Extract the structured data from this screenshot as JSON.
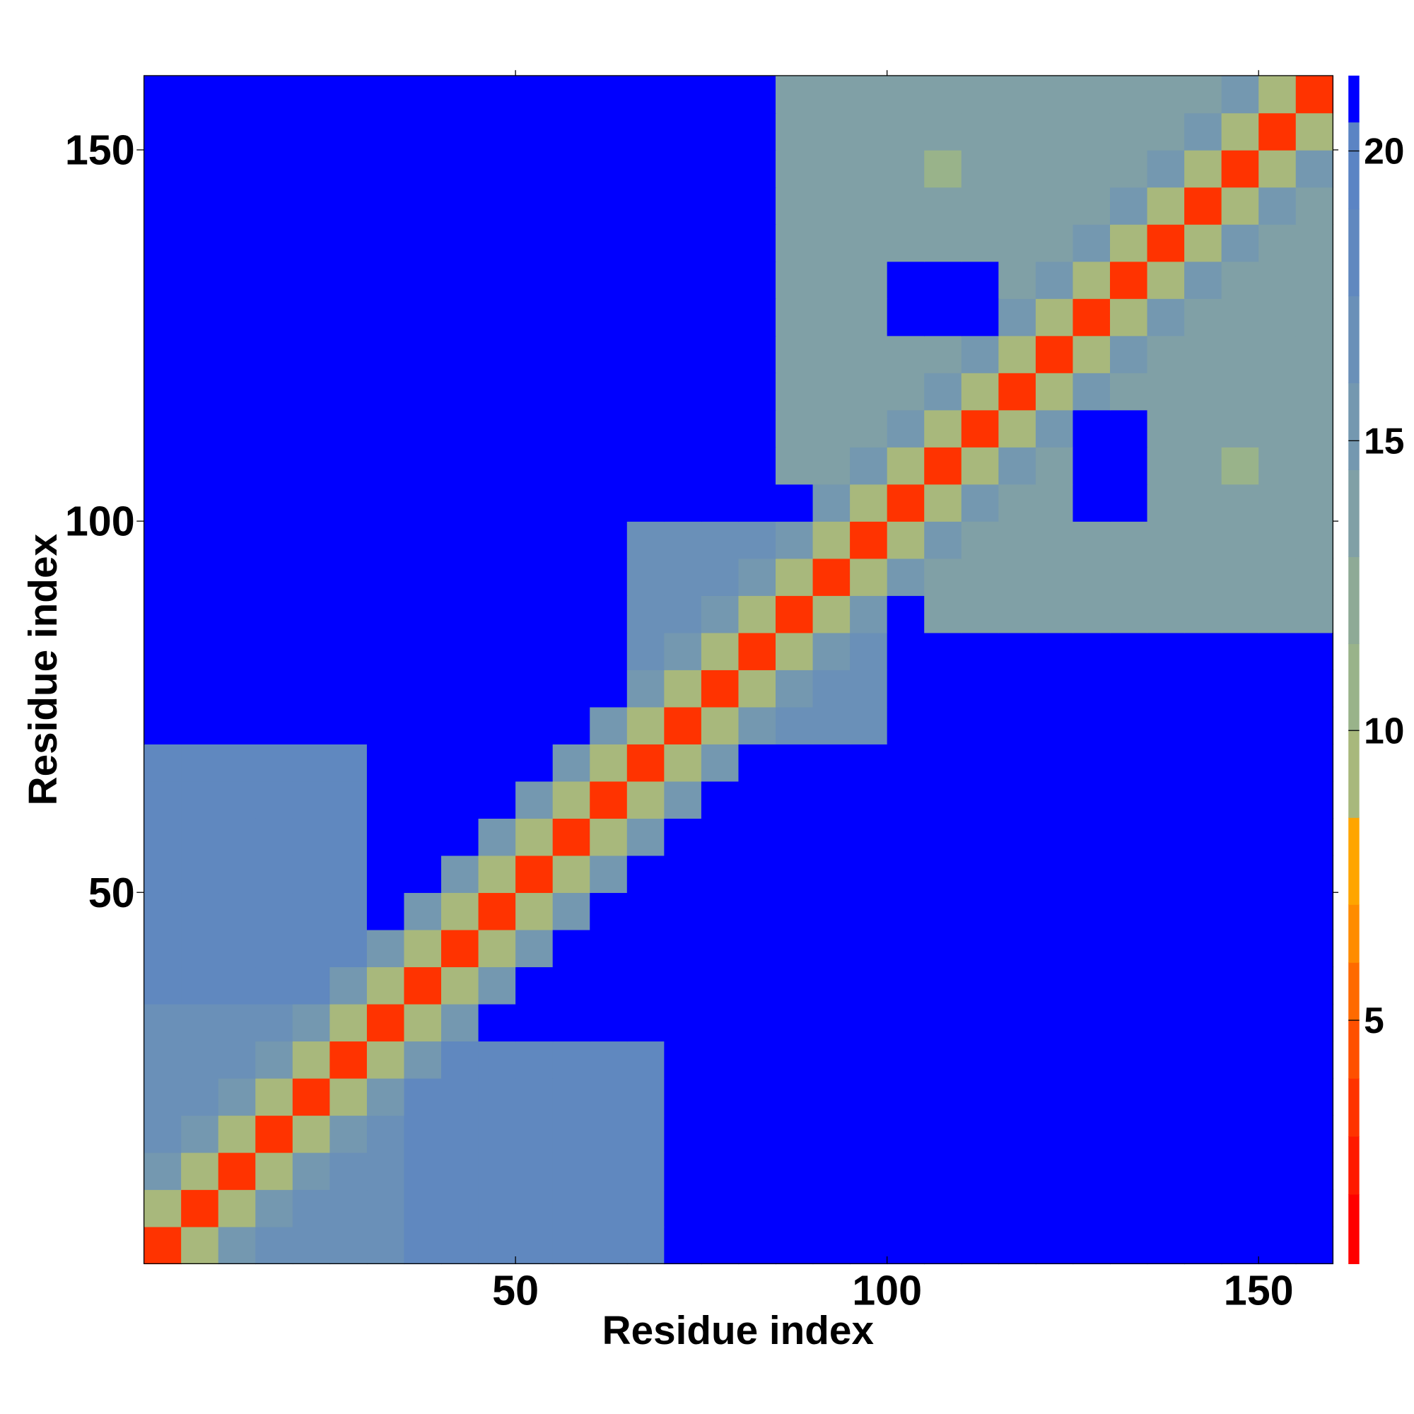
{
  "chart_data": {
    "type": "heatmap",
    "x_label": "Residue index",
    "y_label": "Residue index",
    "x": [
      2.5,
      7.5,
      12.5,
      17.5,
      22.5,
      27.5,
      32.5,
      37.5,
      42.5,
      47.5,
      52.5,
      57.5,
      62.5,
      67.5,
      72.5,
      77.5,
      82.5,
      87.5,
      92.5,
      97.5,
      102.5,
      107.5,
      112.5,
      117.5,
      122.5,
      127.5,
      132.5,
      137.5,
      142.5,
      147.5,
      152.5,
      157.5
    ],
    "y": [
      2.5,
      7.5,
      12.5,
      17.5,
      22.5,
      27.5,
      32.5,
      37.5,
      42.5,
      47.5,
      52.5,
      57.5,
      62.5,
      67.5,
      72.5,
      77.5,
      82.5,
      87.5,
      92.5,
      97.5,
      102.5,
      107.5,
      112.5,
      117.5,
      122.5,
      127.5,
      132.5,
      137.5,
      142.5,
      147.5,
      152.5,
      157.5
    ],
    "xlim": [
      0,
      160
    ],
    "ylim": [
      0,
      160
    ],
    "xticks": [
      50,
      100,
      150
    ],
    "yticks": [
      50,
      100,
      150
    ],
    "values": [
      [
        3,
        9,
        15,
        16,
        16,
        16,
        16,
        18,
        18,
        18,
        18,
        18,
        18,
        18,
        21,
        21,
        21,
        21,
        21,
        21,
        21,
        21,
        21,
        21,
        21,
        21,
        21,
        21,
        21,
        21,
        21,
        21
      ],
      [
        9,
        3,
        9,
        15,
        16,
        16,
        16,
        18,
        18,
        18,
        18,
        18,
        18,
        18,
        21,
        21,
        21,
        21,
        21,
        21,
        21,
        21,
        21,
        21,
        21,
        21,
        21,
        21,
        21,
        21,
        21,
        21
      ],
      [
        15,
        9,
        3,
        9,
        15,
        16,
        16,
        18,
        18,
        18,
        18,
        18,
        18,
        18,
        21,
        21,
        21,
        21,
        21,
        21,
        21,
        21,
        21,
        21,
        21,
        21,
        21,
        21,
        21,
        21,
        21,
        21
      ],
      [
        16,
        15,
        9,
        3,
        9,
        15,
        16,
        18,
        18,
        18,
        18,
        18,
        18,
        18,
        21,
        21,
        21,
        21,
        21,
        21,
        21,
        21,
        21,
        21,
        21,
        21,
        21,
        21,
        21,
        21,
        21,
        21
      ],
      [
        16,
        16,
        15,
        9,
        3,
        9,
        15,
        18,
        18,
        18,
        18,
        18,
        18,
        18,
        21,
        21,
        21,
        21,
        21,
        21,
        21,
        21,
        21,
        21,
        21,
        21,
        21,
        21,
        21,
        21,
        21,
        21
      ],
      [
        16,
        16,
        16,
        15,
        9,
        3,
        9,
        15,
        18,
        18,
        18,
        18,
        18,
        18,
        21,
        21,
        21,
        21,
        21,
        21,
        21,
        21,
        21,
        21,
        21,
        21,
        21,
        21,
        21,
        21,
        21,
        21
      ],
      [
        16,
        16,
        16,
        16,
        15,
        9,
        3,
        9,
        15,
        21,
        21,
        21,
        21,
        21,
        21,
        21,
        21,
        21,
        21,
        21,
        21,
        21,
        21,
        21,
        21,
        21,
        21,
        21,
        21,
        21,
        21,
        21
      ],
      [
        18,
        18,
        18,
        18,
        18,
        15,
        9,
        3,
        9,
        15,
        21,
        21,
        21,
        21,
        21,
        21,
        21,
        21,
        21,
        21,
        21,
        21,
        21,
        21,
        21,
        21,
        21,
        21,
        21,
        21,
        21,
        21
      ],
      [
        18,
        18,
        18,
        18,
        18,
        18,
        15,
        9,
        3,
        9,
        15,
        21,
        21,
        21,
        21,
        21,
        21,
        21,
        21,
        21,
        21,
        21,
        21,
        21,
        21,
        21,
        21,
        21,
        21,
        21,
        21,
        21
      ],
      [
        18,
        18,
        18,
        18,
        18,
        18,
        21,
        15,
        9,
        3,
        9,
        15,
        21,
        21,
        21,
        21,
        21,
        21,
        21,
        21,
        21,
        21,
        21,
        21,
        21,
        21,
        21,
        21,
        21,
        21,
        21,
        21
      ],
      [
        18,
        18,
        18,
        18,
        18,
        18,
        21,
        21,
        15,
        9,
        3,
        9,
        15,
        21,
        21,
        21,
        21,
        21,
        21,
        21,
        21,
        21,
        21,
        21,
        21,
        21,
        21,
        21,
        21,
        21,
        21,
        21
      ],
      [
        18,
        18,
        18,
        18,
        18,
        18,
        21,
        21,
        21,
        15,
        9,
        3,
        9,
        15,
        21,
        21,
        21,
        21,
        21,
        21,
        21,
        21,
        21,
        21,
        21,
        21,
        21,
        21,
        21,
        21,
        21,
        21
      ],
      [
        18,
        18,
        18,
        18,
        18,
        18,
        21,
        21,
        21,
        21,
        15,
        9,
        3,
        9,
        15,
        21,
        21,
        21,
        21,
        21,
        21,
        21,
        21,
        21,
        21,
        21,
        21,
        21,
        21,
        21,
        21,
        21
      ],
      [
        18,
        18,
        18,
        18,
        18,
        18,
        21,
        21,
        21,
        21,
        21,
        15,
        9,
        3,
        9,
        15,
        21,
        21,
        21,
        21,
        21,
        21,
        21,
        21,
        21,
        21,
        21,
        21,
        21,
        21,
        21,
        21
      ],
      [
        21,
        21,
        21,
        21,
        21,
        21,
        21,
        21,
        21,
        21,
        21,
        21,
        15,
        9,
        3,
        9,
        15,
        16,
        16,
        16,
        21,
        21,
        21,
        21,
        21,
        21,
        21,
        21,
        21,
        21,
        21,
        21
      ],
      [
        21,
        21,
        21,
        21,
        21,
        21,
        21,
        21,
        21,
        21,
        21,
        21,
        21,
        15,
        9,
        3,
        9,
        15,
        16,
        16,
        21,
        21,
        21,
        21,
        21,
        21,
        21,
        21,
        21,
        21,
        21,
        21
      ],
      [
        21,
        21,
        21,
        21,
        21,
        21,
        21,
        21,
        21,
        21,
        21,
        21,
        21,
        16,
        15,
        9,
        3,
        9,
        15,
        16,
        21,
        21,
        21,
        21,
        21,
        21,
        21,
        21,
        21,
        21,
        21,
        21
      ],
      [
        21,
        21,
        21,
        21,
        21,
        21,
        21,
        21,
        21,
        21,
        21,
        21,
        21,
        16,
        16,
        15,
        9,
        3,
        9,
        15,
        21,
        14,
        14,
        14,
        14,
        14,
        14,
        14,
        14,
        14,
        14,
        14
      ],
      [
        21,
        21,
        21,
        21,
        21,
        21,
        21,
        21,
        21,
        21,
        21,
        21,
        21,
        16,
        16,
        16,
        15,
        9,
        3,
        9,
        15,
        14,
        14,
        14,
        14,
        14,
        14,
        14,
        14,
        14,
        14,
        14
      ],
      [
        21,
        21,
        21,
        21,
        21,
        21,
        21,
        21,
        21,
        21,
        21,
        21,
        21,
        16,
        16,
        16,
        16,
        15,
        9,
        3,
        9,
        15,
        14,
        14,
        14,
        14,
        14,
        14,
        14,
        14,
        14,
        14
      ],
      [
        21,
        21,
        21,
        21,
        21,
        21,
        21,
        21,
        21,
        21,
        21,
        21,
        21,
        21,
        21,
        21,
        21,
        21,
        15,
        9,
        3,
        9,
        15,
        14,
        14,
        21,
        21,
        14,
        14,
        14,
        14,
        14
      ],
      [
        21,
        21,
        21,
        21,
        21,
        21,
        21,
        21,
        21,
        21,
        21,
        21,
        21,
        21,
        21,
        21,
        21,
        14,
        14,
        15,
        9,
        3,
        9,
        15,
        14,
        21,
        21,
        14,
        14,
        10,
        14,
        14
      ],
      [
        21,
        21,
        21,
        21,
        21,
        21,
        21,
        21,
        21,
        21,
        21,
        21,
        21,
        21,
        21,
        21,
        21,
        14,
        14,
        14,
        15,
        9,
        3,
        9,
        15,
        21,
        21,
        14,
        14,
        14,
        14,
        14
      ],
      [
        21,
        21,
        21,
        21,
        21,
        21,
        21,
        21,
        21,
        21,
        21,
        21,
        21,
        21,
        21,
        21,
        21,
        14,
        14,
        14,
        14,
        15,
        9,
        3,
        9,
        15,
        14,
        14,
        14,
        14,
        14,
        14
      ],
      [
        21,
        21,
        21,
        21,
        21,
        21,
        21,
        21,
        21,
        21,
        21,
        21,
        21,
        21,
        21,
        21,
        21,
        14,
        14,
        14,
        14,
        14,
        15,
        9,
        3,
        9,
        15,
        14,
        14,
        14,
        14,
        14
      ],
      [
        21,
        21,
        21,
        21,
        21,
        21,
        21,
        21,
        21,
        21,
        21,
        21,
        21,
        21,
        21,
        21,
        21,
        14,
        14,
        14,
        21,
        21,
        21,
        15,
        9,
        3,
        9,
        15,
        14,
        14,
        14,
        14
      ],
      [
        21,
        21,
        21,
        21,
        21,
        21,
        21,
        21,
        21,
        21,
        21,
        21,
        21,
        21,
        21,
        21,
        21,
        14,
        14,
        14,
        21,
        21,
        21,
        14,
        15,
        9,
        3,
        9,
        15,
        14,
        14,
        14
      ],
      [
        21,
        21,
        21,
        21,
        21,
        21,
        21,
        21,
        21,
        21,
        21,
        21,
        21,
        21,
        21,
        21,
        21,
        14,
        14,
        14,
        14,
        14,
        14,
        14,
        14,
        15,
        9,
        3,
        9,
        15,
        14,
        14
      ],
      [
        21,
        21,
        21,
        21,
        21,
        21,
        21,
        21,
        21,
        21,
        21,
        21,
        21,
        21,
        21,
        21,
        21,
        14,
        14,
        14,
        14,
        14,
        14,
        14,
        14,
        14,
        15,
        9,
        3,
        9,
        15,
        14
      ],
      [
        21,
        21,
        21,
        21,
        21,
        21,
        21,
        21,
        21,
        21,
        21,
        21,
        21,
        21,
        21,
        21,
        21,
        14,
        14,
        14,
        14,
        10,
        14,
        14,
        14,
        14,
        14,
        15,
        9,
        3,
        9,
        15
      ],
      [
        21,
        21,
        21,
        21,
        21,
        21,
        21,
        21,
        21,
        21,
        21,
        21,
        21,
        21,
        21,
        21,
        21,
        14,
        14,
        14,
        14,
        14,
        14,
        14,
        14,
        14,
        14,
        14,
        15,
        9,
        3,
        9
      ],
      [
        21,
        21,
        21,
        21,
        21,
        21,
        21,
        21,
        21,
        21,
        21,
        21,
        21,
        21,
        21,
        21,
        21,
        14,
        14,
        14,
        14,
        14,
        14,
        14,
        14,
        14,
        14,
        14,
        14,
        15,
        9,
        3
      ]
    ],
    "colorbar": {
      "lim": [
        0.8,
        21.3
      ],
      "ticks": [
        5,
        10,
        15,
        20
      ],
      "levels": [
        0.8,
        2,
        3,
        4,
        5,
        6,
        7,
        8.5,
        10,
        11.5,
        13,
        14.5,
        16,
        17.5,
        19,
        20.5,
        21.3
      ],
      "colors": [
        "#ff0000",
        "#ff1a00",
        "#ff3300",
        "#ff5000",
        "#ff6a00",
        "#ff8c00",
        "#ffa500",
        "#a8b87c",
        "#99b38a",
        "#8eaa96",
        "#80a0a6",
        "#7498b0",
        "#6a90b8",
        "#6088bf",
        "#5b84c4",
        "#0000ff"
      ]
    }
  }
}
